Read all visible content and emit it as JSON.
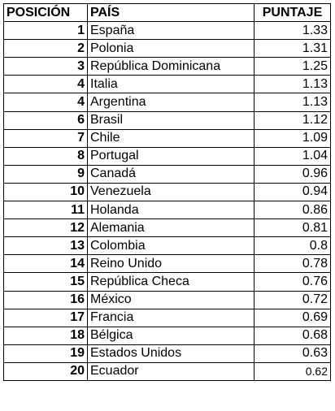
{
  "table": {
    "headers": {
      "position": "POSICIÓN",
      "country": "PAÍS",
      "score": "PUNTAJE"
    },
    "rows": [
      {
        "position": "1",
        "country": "España",
        "score": "1.33"
      },
      {
        "position": "2",
        "country": "Polonia",
        "score": "1.31"
      },
      {
        "position": "3",
        "country": "República Dominicana",
        "score": "1.25"
      },
      {
        "position": "4",
        "country": "Italia",
        "score": "1.13"
      },
      {
        "position": "4",
        "country": "Argentina",
        "score": "1.13"
      },
      {
        "position": "6",
        "country": "Brasil",
        "score": "1.12"
      },
      {
        "position": "7",
        "country": "Chile",
        "score": "1.09"
      },
      {
        "position": "8",
        "country": "Portugal",
        "score": "1.04"
      },
      {
        "position": "9",
        "country": "Canadá",
        "score": "0.96"
      },
      {
        "position": "10",
        "country": "Venezuela",
        "score": "0.94"
      },
      {
        "position": "11",
        "country": "Holanda",
        "score": "0.86"
      },
      {
        "position": "12",
        "country": "Alemania",
        "score": "0.81"
      },
      {
        "position": "13",
        "country": "Colombia",
        "score": "0.8"
      },
      {
        "position": "14",
        "country": "Reino Unido",
        "score": "0.78"
      },
      {
        "position": "15",
        "country": "República Checa",
        "score": "0.76"
      },
      {
        "position": "16",
        "country": "México",
        "score": "0.72"
      },
      {
        "position": "17",
        "country": "Francia",
        "score": "0.69"
      },
      {
        "position": "18",
        "country": "Bélgica",
        "score": "0.68"
      },
      {
        "position": "19",
        "country": "Estados Unidos",
        "score": "0.63"
      },
      {
        "position": "20",
        "country": "Ecuador",
        "score": "0.62"
      }
    ]
  }
}
